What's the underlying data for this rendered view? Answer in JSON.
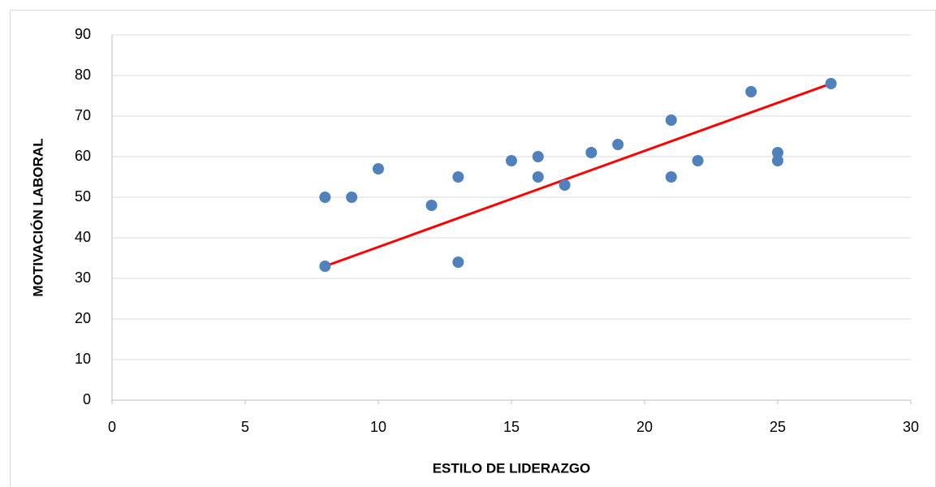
{
  "chart_data": {
    "type": "scatter",
    "x_label": "ESTILO  DE  LIDERAZGO",
    "y_label": "MOTIVACIÓN  LABORAL",
    "x": [
      8,
      8,
      9,
      10,
      12,
      13,
      13,
      15,
      16,
      16,
      17,
      18,
      19,
      21,
      21,
      22,
      24,
      25,
      25,
      27
    ],
    "y": [
      50,
      33,
      50,
      57,
      48,
      55,
      34,
      59,
      60,
      55,
      53,
      61,
      63,
      69,
      55,
      59,
      76,
      61,
      59,
      78
    ],
    "color": "#4f81bd",
    "trendline": {
      "x": [
        8,
        27
      ],
      "y": [
        33,
        78
      ],
      "color": "#ff0000"
    },
    "xlim": [
      0,
      30
    ],
    "xticks": [
      0,
      5,
      10,
      15,
      20,
      25,
      30
    ],
    "ylim": [
      0,
      90
    ],
    "yticks": [
      0,
      10,
      20,
      30,
      40,
      50,
      60,
      70,
      80,
      90
    ],
    "grid": true
  }
}
